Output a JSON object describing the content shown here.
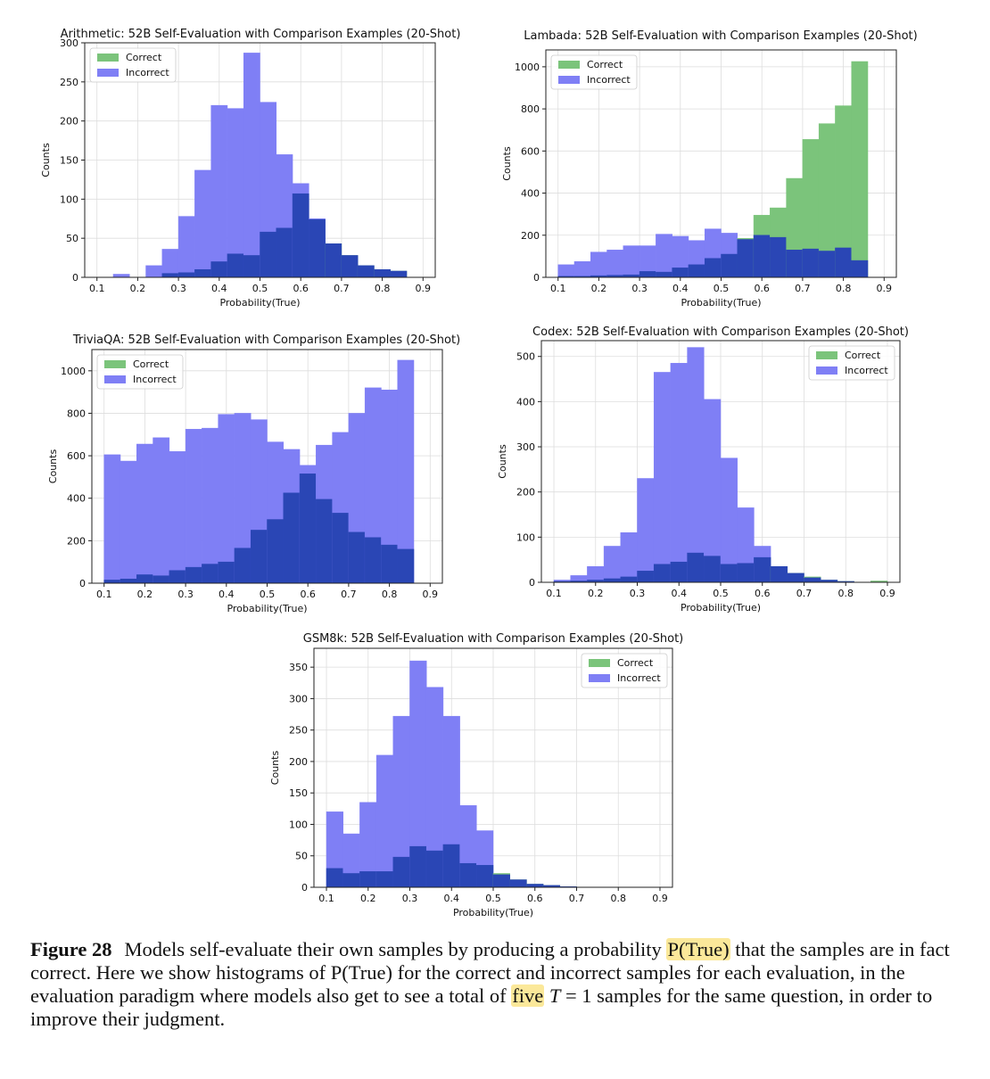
{
  "colors": {
    "correct": "#7bc47b",
    "incorrect": "#7f7ff5",
    "overlap": "#2a46b5"
  },
  "chart_data": [
    {
      "type": "histogram",
      "title": "Arithmetic: 52B Self-Evaluation with Comparison Examples (20-Shot)",
      "xlabel": "Probability(True)",
      "ylabel": "Counts",
      "xlim": [
        0.07,
        0.93
      ],
      "ylim": [
        0,
        300
      ],
      "xticks": [
        "0.1",
        "0.2",
        "0.3",
        "0.4",
        "0.5",
        "0.6",
        "0.7",
        "0.8",
        "0.9"
      ],
      "yticks": [
        "0",
        "50",
        "100",
        "150",
        "200",
        "250",
        "300"
      ],
      "bin_edges": [
        0.1,
        0.14,
        0.18,
        0.22,
        0.26,
        0.3,
        0.34,
        0.38,
        0.42,
        0.46,
        0.5,
        0.54,
        0.58,
        0.62,
        0.66,
        0.7,
        0.74,
        0.78,
        0.82,
        0.86,
        0.9
      ],
      "legend": "upper-left",
      "series": [
        {
          "name": "Correct",
          "values": [
            0,
            0,
            0,
            0,
            5,
            6,
            10,
            20,
            30,
            28,
            58,
            63,
            107,
            74,
            43,
            28,
            15,
            10,
            8,
            0
          ]
        },
        {
          "name": "Incorrect",
          "values": [
            0,
            4,
            0,
            15,
            36,
            78,
            137,
            220,
            216,
            287,
            224,
            157,
            120,
            75,
            43,
            28,
            15,
            10,
            8,
            0
          ]
        }
      ]
    },
    {
      "type": "histogram",
      "title": "Lambada: 52B Self-Evaluation with Comparison Examples (20-Shot)",
      "xlabel": "Probability(True)",
      "ylabel": "Counts",
      "xlim": [
        0.07,
        0.93
      ],
      "ylim": [
        0,
        1080
      ],
      "xticks": [
        "0.1",
        "0.2",
        "0.3",
        "0.4",
        "0.5",
        "0.6",
        "0.7",
        "0.8",
        "0.9"
      ],
      "yticks": [
        "0",
        "200",
        "400",
        "600",
        "800",
        "1000"
      ],
      "bin_edges": [
        0.1,
        0.14,
        0.18,
        0.22,
        0.26,
        0.3,
        0.34,
        0.38,
        0.42,
        0.46,
        0.5,
        0.54,
        0.58,
        0.62,
        0.66,
        0.7,
        0.74,
        0.78,
        0.82,
        0.86,
        0.9
      ],
      "legend": "upper-left",
      "series": [
        {
          "name": "Correct",
          "values": [
            5,
            5,
            8,
            10,
            12,
            28,
            25,
            45,
            60,
            90,
            110,
            185,
            295,
            330,
            470,
            655,
            730,
            815,
            1025,
            0
          ]
        },
        {
          "name": "Incorrect",
          "values": [
            60,
            75,
            120,
            130,
            150,
            150,
            205,
            195,
            175,
            230,
            210,
            180,
            200,
            190,
            130,
            135,
            125,
            140,
            80,
            0
          ]
        }
      ]
    },
    {
      "type": "histogram",
      "title": "TriviaQA: 52B Self-Evaluation with Comparison Examples (20-Shot)",
      "xlabel": "Probability(True)",
      "ylabel": "Counts",
      "xlim": [
        0.07,
        0.93
      ],
      "ylim": [
        0,
        1100
      ],
      "xticks": [
        "0.1",
        "0.2",
        "0.3",
        "0.4",
        "0.5",
        "0.6",
        "0.7",
        "0.8",
        "0.9"
      ],
      "yticks": [
        "0",
        "200",
        "400",
        "600",
        "800",
        "1000"
      ],
      "bin_edges": [
        0.1,
        0.14,
        0.18,
        0.22,
        0.26,
        0.3,
        0.34,
        0.38,
        0.42,
        0.46,
        0.5,
        0.54,
        0.58,
        0.62,
        0.66,
        0.7,
        0.74,
        0.78,
        0.82,
        0.86,
        0.9
      ],
      "legend": "upper-left",
      "series": [
        {
          "name": "Correct",
          "values": [
            15,
            20,
            40,
            35,
            60,
            75,
            90,
            100,
            165,
            250,
            300,
            425,
            515,
            395,
            330,
            240,
            215,
            180,
            160,
            0
          ]
        },
        {
          "name": "Incorrect",
          "values": [
            605,
            575,
            655,
            685,
            620,
            725,
            730,
            795,
            800,
            770,
            665,
            630,
            555,
            650,
            710,
            800,
            920,
            910,
            1050,
            0
          ]
        }
      ]
    },
    {
      "type": "histogram",
      "title": "Codex: 52B Self-Evaluation with Comparison Examples (20-Shot)",
      "xlabel": "Probability(True)",
      "ylabel": "Counts",
      "xlim": [
        0.07,
        0.93
      ],
      "ylim": [
        0,
        535
      ],
      "xticks": [
        "0.1",
        "0.2",
        "0.3",
        "0.4",
        "0.5",
        "0.6",
        "0.7",
        "0.8",
        "0.9"
      ],
      "yticks": [
        "0",
        "100",
        "200",
        "300",
        "400",
        "500"
      ],
      "bin_edges": [
        0.1,
        0.14,
        0.18,
        0.22,
        0.26,
        0.3,
        0.34,
        0.38,
        0.42,
        0.46,
        0.5,
        0.54,
        0.58,
        0.62,
        0.66,
        0.7,
        0.74,
        0.78,
        0.82,
        0.86,
        0.9
      ],
      "legend": "upper-right",
      "series": [
        {
          "name": "Correct",
          "values": [
            2,
            3,
            5,
            8,
            12,
            25,
            40,
            45,
            65,
            58,
            40,
            42,
            55,
            35,
            20,
            12,
            5,
            2,
            0,
            3
          ]
        },
        {
          "name": "Incorrect",
          "values": [
            5,
            15,
            35,
            80,
            110,
            230,
            465,
            485,
            520,
            405,
            275,
            165,
            80,
            35,
            20,
            10,
            5,
            2,
            0,
            0
          ]
        }
      ]
    },
    {
      "type": "histogram",
      "title": "GSM8k: 52B Self-Evaluation with Comparison Examples (20-Shot)",
      "xlabel": "Probability(True)",
      "ylabel": "Counts",
      "xlim": [
        0.07,
        0.93
      ],
      "ylim": [
        0,
        380
      ],
      "xticks": [
        "0.1",
        "0.2",
        "0.3",
        "0.4",
        "0.5",
        "0.6",
        "0.7",
        "0.8",
        "0.9"
      ],
      "yticks": [
        "0",
        "50",
        "100",
        "150",
        "200",
        "250",
        "300",
        "350"
      ],
      "bin_edges": [
        0.1,
        0.14,
        0.18,
        0.22,
        0.26,
        0.3,
        0.34,
        0.38,
        0.42,
        0.46,
        0.5,
        0.54,
        0.58,
        0.62,
        0.66,
        0.7,
        0.74,
        0.78,
        0.82,
        0.86,
        0.9
      ],
      "legend": "upper-right",
      "series": [
        {
          "name": "Correct",
          "values": [
            30,
            22,
            25,
            25,
            48,
            65,
            58,
            68,
            38,
            35,
            22,
            12,
            5,
            3,
            1,
            0,
            0,
            0,
            0,
            0
          ]
        },
        {
          "name": "Incorrect",
          "values": [
            120,
            85,
            135,
            210,
            272,
            360,
            318,
            272,
            130,
            90,
            20,
            12,
            5,
            3,
            1,
            0,
            0,
            0,
            0,
            0
          ]
        }
      ]
    }
  ],
  "caption": {
    "label": "Figure 28",
    "text_1": "Models self-evaluate their own samples by producing a probability",
    "highlight_1": "P(True)",
    "text_2": "that the samples are in fact correct. Here we show histograms of P(True) for the correct and incorrect samples for each evaluation, in the evaluation paradigm where models also get to see a total of",
    "highlight_2": "five",
    "math": "T",
    "text_3": "= 1 samples for the same question, in order to improve their judgment."
  }
}
